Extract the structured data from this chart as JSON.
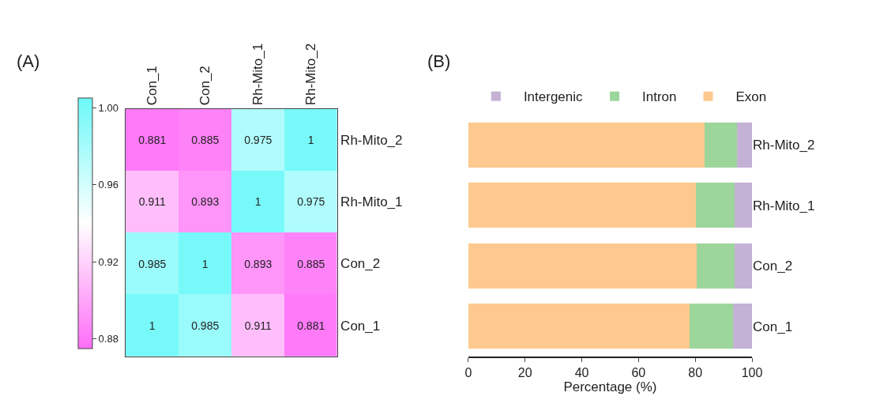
{
  "chart_data": [
    {
      "type": "heatmap",
      "title": "(A)",
      "categories": [
        "Con_1",
        "Con_2",
        "Rh-Mito_1",
        "Rh-Mito_2"
      ],
      "y_categories": [
        "Rh-Mito_2",
        "Rh-Mito_1",
        "Con_2",
        "Con_1"
      ],
      "cells": [
        [
          0.881,
          0.885,
          0.975,
          1
        ],
        [
          0.911,
          0.893,
          1,
          0.975
        ],
        [
          0.985,
          1,
          0.893,
          0.885
        ],
        [
          1,
          0.985,
          0.911,
          0.881
        ]
      ],
      "data_labels": true,
      "clim": [
        0.875,
        1.005
      ],
      "cticks": [
        0.88,
        0.92,
        0.96,
        {
          "value": 1,
          "label": "1.00"
        }
      ]
    },
    {
      "type": "bar",
      "title": "(B)",
      "orientation": "horizontal",
      "stacked": true,
      "categories": [
        "Rh-Mito_2",
        "Rh-Mito_1",
        "Con_2",
        "Con_1"
      ],
      "series": [
        {
          "name": "Exon",
          "color": "#fdc98f",
          "values": [
            83.2,
            80.3,
            80.4,
            78.1
          ]
        },
        {
          "name": "Intron",
          "color": "#9dd69b",
          "values": [
            11.5,
            13.7,
            13.6,
            15.3
          ]
        },
        {
          "name": "Intergenic",
          "color": "#c4b1d6",
          "values": [
            5.3,
            6.0,
            6.0,
            6.6
          ]
        }
      ],
      "xlabel": "Percentage (%)",
      "xlim": [
        0,
        100
      ],
      "xticks": [
        0,
        20,
        40,
        60,
        80,
        100
      ],
      "legend": "top"
    }
  ]
}
